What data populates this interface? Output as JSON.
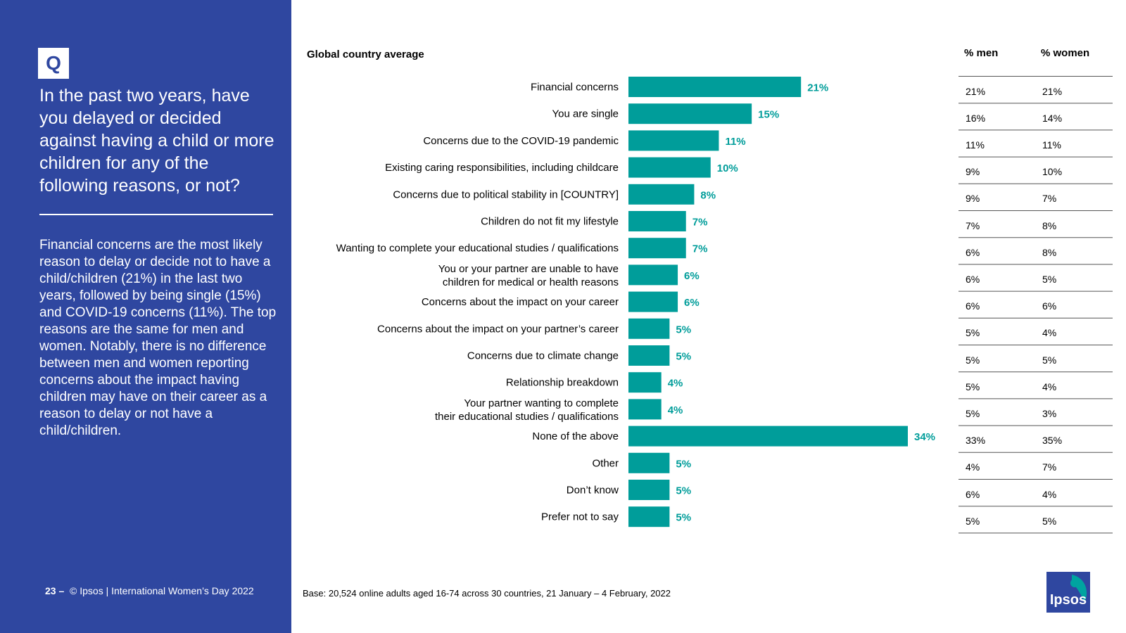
{
  "question_badge": "Q",
  "question": "In the past two years, have you delayed or decided against having a child or more children for any of the following reasons, or not?",
  "summary": "Financial concerns are the most likely reason to delay or decide not to have a child/children (21%) in the last two years, followed by being single (15%) and COVID-19 concerns (11%). The top reasons are the same for men and women. Notably, there is no difference between men and women reporting concerns about the impact having children may have on their career as a reason to delay or not have a child/children.",
  "footer": {
    "page_number": "23 –",
    "credit": "© Ipsos | International Women’s Day 2022",
    "base": "Base: 20,524 online adults aged 16-74 across 30 countries, 21 January – 4 February, 2022"
  },
  "logo_text": "Ipsos",
  "colors": {
    "panel": "#2f47a0",
    "bar": "#009d9a"
  },
  "table": {
    "headers": [
      "% men",
      "% women"
    ],
    "men": [
      "21%",
      "16%",
      "11%",
      "9%",
      "9%",
      "7%",
      "6%",
      "6%",
      "6%",
      "5%",
      "5%",
      "5%",
      "5%",
      "33%",
      "4%",
      "6%",
      "5%"
    ],
    "women": [
      "21%",
      "14%",
      "11%",
      "10%",
      "7%",
      "8%",
      "8%",
      "5%",
      "6%",
      "4%",
      "5%",
      "4%",
      "3%",
      "35%",
      "7%",
      "4%",
      "5%"
    ]
  },
  "chart_data": {
    "type": "bar",
    "orientation": "horizontal",
    "subtitle": "Global country average",
    "categories": [
      "Financial concerns",
      "You are single",
      "Concerns due to the COVID-19 pandemic",
      "Existing caring responsibilities, including childcare",
      "Concerns due to political stability in [COUNTRY]",
      "Children do not fit my lifestyle",
      "Wanting to complete your educational studies / qualifications",
      "You or your partner are unable to have\nchildren for medical or health reasons",
      "Concerns about the impact on your career",
      "Concerns about the impact on your partner’s career",
      "Concerns due to climate change",
      "Relationship breakdown",
      "Your partner wanting to complete\ntheir educational studies / qualifications",
      "None of the above",
      "Other",
      "Don’t know",
      "Prefer not to say"
    ],
    "values": [
      21,
      15,
      11,
      10,
      8,
      7,
      7,
      6,
      6,
      5,
      5,
      4,
      4,
      34,
      5,
      5,
      5
    ],
    "value_labels": [
      "21%",
      "15%",
      "11%",
      "10%",
      "8%",
      "7%",
      "7%",
      "6%",
      "6%",
      "5%",
      "5%",
      "4%",
      "4%",
      "34%",
      "5%",
      "5%",
      "5%"
    ],
    "xlim": [
      0,
      34
    ],
    "grid": false,
    "legend": "none"
  }
}
